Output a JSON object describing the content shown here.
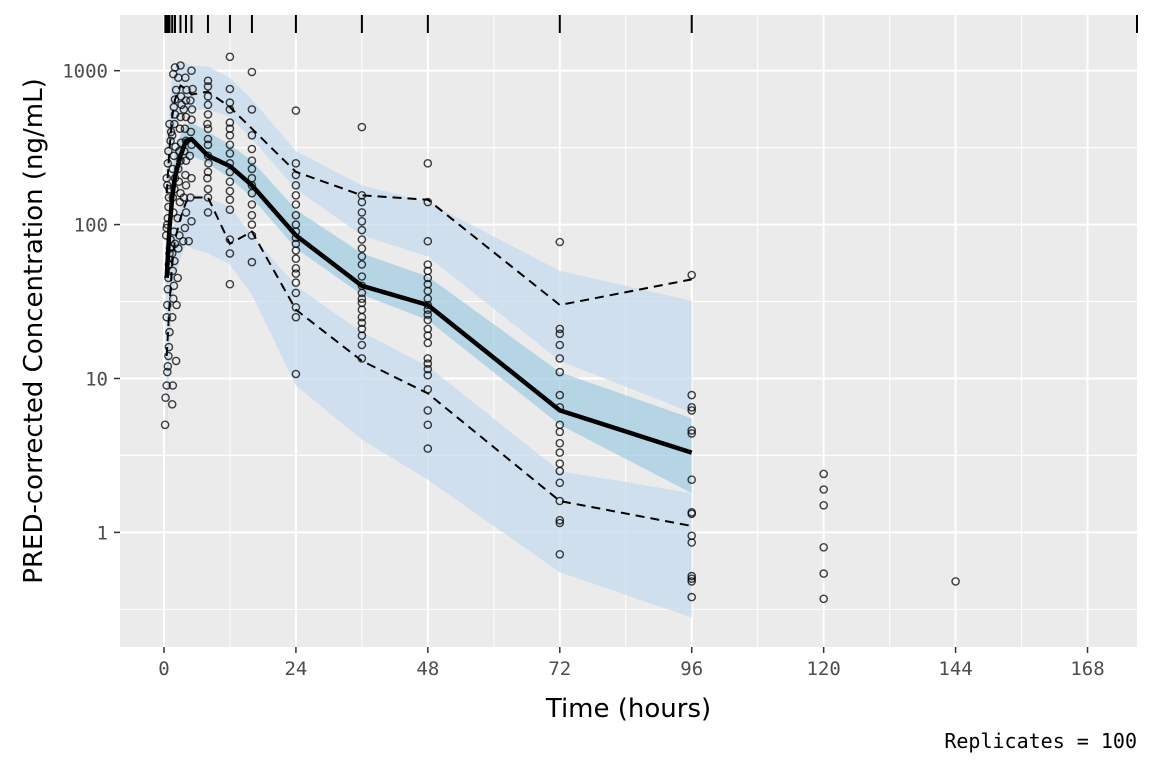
{
  "chart_data": {
    "type": "scatter",
    "xlabel": "Time (hours)",
    "ylabel": "PRED-corrected Concentration (ng/mL)",
    "caption": "Replicates = 100",
    "x_scale": "linear",
    "y_scale": "log10",
    "xlim": [
      -8,
      177
    ],
    "ylim": [
      0.18,
      2300
    ],
    "x_ticks": [
      0,
      24,
      48,
      72,
      96,
      120,
      144,
      168
    ],
    "x_tick_labels": [
      "0",
      "24",
      "48",
      "72",
      "96",
      "120",
      "144",
      "168"
    ],
    "y_ticks": [
      1,
      10,
      100,
      1000
    ],
    "y_tick_labels": [
      "1",
      "10",
      "100",
      "1000"
    ],
    "grid": true,
    "colors": {
      "panel_background": "#ebebeb",
      "grid_line": "#ffffff",
      "outer_band": "#c6dbef",
      "median_band": "#9ecae1",
      "median_line": "#000000",
      "percentile_lines": "#000000",
      "points": "#000000"
    },
    "bin_rug_x": [
      0.25,
      0.5,
      0.75,
      1,
      1.5,
      2,
      3,
      4,
      5,
      8,
      12,
      16,
      24,
      36,
      48,
      72,
      96,
      177
    ],
    "series": [
      {
        "role": "observed_median",
        "x": [
          0.5,
          1,
          1.5,
          2,
          3,
          4,
          5,
          8,
          12,
          16,
          24,
          36,
          48,
          72,
          96
        ],
        "y": [
          45,
          95,
          150,
          205,
          280,
          350,
          360,
          280,
          240,
          180,
          85,
          40,
          30,
          6.2,
          3.3
        ]
      },
      {
        "role": "observed_p95",
        "x": [
          0.5,
          1,
          1.5,
          2,
          3,
          4,
          5,
          8,
          12,
          16,
          24,
          36,
          48,
          72,
          96
        ],
        "y": [
          160,
          310,
          500,
          650,
          800,
          760,
          700,
          730,
          580,
          420,
          220,
          155,
          145,
          30,
          44
        ]
      },
      {
        "role": "observed_p05",
        "x": [
          0.5,
          1,
          1.5,
          2,
          3,
          4,
          5,
          8,
          12,
          16,
          24,
          36,
          48,
          72,
          96
        ],
        "y": [
          14,
          30,
          55,
          80,
          110,
          140,
          150,
          150,
          75,
          90,
          28,
          13,
          8,
          1.6,
          1.1
        ]
      },
      {
        "role": "pi_p95_band",
        "x": [
          0.5,
          1,
          1.5,
          2,
          3,
          4,
          5,
          8,
          12,
          16,
          24,
          36,
          48,
          72,
          96
        ],
        "lower": [
          100,
          210,
          320,
          420,
          520,
          560,
          560,
          560,
          500,
          360,
          170,
          85,
          62,
          13,
          6
        ],
        "upper": [
          320,
          620,
          900,
          1060,
          1160,
          1120,
          1080,
          1060,
          900,
          650,
          300,
          180,
          140,
          50,
          32
        ]
      },
      {
        "role": "pi_median_band",
        "x": [
          0.5,
          1,
          1.5,
          2,
          3,
          4,
          5,
          8,
          12,
          16,
          24,
          36,
          48,
          72,
          96
        ],
        "lower": [
          30,
          75,
          120,
          165,
          230,
          270,
          280,
          250,
          200,
          150,
          70,
          35,
          24,
          5,
          1.8
        ],
        "upper": [
          75,
          140,
          220,
          300,
          380,
          440,
          460,
          400,
          330,
          260,
          125,
          65,
          46,
          11,
          5.5
        ]
      },
      {
        "role": "pi_p05_band",
        "x": [
          0.5,
          1,
          1.5,
          2,
          3,
          4,
          5,
          8,
          12,
          16,
          24,
          36,
          48,
          72,
          96
        ],
        "lower": [
          3,
          15,
          28,
          45,
          60,
          75,
          70,
          65,
          55,
          35,
          9,
          4,
          2.2,
          0.55,
          0.28
        ],
        "upper": [
          30,
          60,
          85,
          110,
          130,
          150,
          160,
          150,
          130,
          85,
          40,
          20,
          12,
          2.5,
          1.8
        ]
      },
      {
        "role": "observed_points",
        "points": [
          [
            0.2,
            5
          ],
          [
            0.3,
            7.5
          ],
          [
            0.5,
            9
          ],
          [
            0.6,
            11
          ],
          [
            0.7,
            12
          ],
          [
            0.8,
            14
          ],
          [
            0.9,
            16
          ],
          [
            1,
            20
          ],
          [
            0.5,
            25
          ],
          [
            0.6,
            30
          ],
          [
            0.7,
            38
          ],
          [
            0.8,
            45
          ],
          [
            0.9,
            55
          ],
          [
            1,
            65
          ],
          [
            1.1,
            70
          ],
          [
            1.2,
            80
          ],
          [
            0.4,
            85
          ],
          [
            0.5,
            95
          ],
          [
            0.6,
            100
          ],
          [
            0.7,
            110
          ],
          [
            0.8,
            130
          ],
          [
            0.9,
            150
          ],
          [
            1,
            170
          ],
          [
            0.6,
            180
          ],
          [
            0.5,
            200
          ],
          [
            0.7,
            250
          ],
          [
            0.8,
            300
          ],
          [
            1.2,
            350
          ],
          [
            1.3,
            400
          ],
          [
            1,
            450
          ],
          [
            1.5,
            6.8
          ],
          [
            1.6,
            9
          ],
          [
            1.5,
            25
          ],
          [
            1.7,
            33
          ],
          [
            1.8,
            40
          ],
          [
            1.6,
            50
          ],
          [
            1.9,
            58
          ],
          [
            1.5,
            65
          ],
          [
            2,
            75
          ],
          [
            1.8,
            90
          ],
          [
            1.7,
            120
          ],
          [
            1.6,
            150
          ],
          [
            1.9,
            170
          ],
          [
            2,
            200
          ],
          [
            1.6,
            230
          ],
          [
            1.8,
            280
          ],
          [
            2.1,
            320
          ],
          [
            1.5,
            380
          ],
          [
            1.9,
            450
          ],
          [
            2,
            520
          ],
          [
            1.8,
            580
          ],
          [
            2,
            650
          ],
          [
            2.2,
            750
          ],
          [
            1.7,
            950
          ],
          [
            2,
            1050
          ],
          [
            2.2,
            13
          ],
          [
            2.3,
            30
          ],
          [
            2.5,
            45
          ],
          [
            2.6,
            70
          ],
          [
            2.8,
            85
          ],
          [
            2.5,
            110
          ],
          [
            2.9,
            140
          ],
          [
            3,
            160
          ],
          [
            2.7,
            190
          ],
          [
            2.6,
            230
          ],
          [
            3,
            260
          ],
          [
            2.8,
            300
          ],
          [
            3.1,
            340
          ],
          [
            2.9,
            420
          ],
          [
            3,
            500
          ],
          [
            3.2,
            600
          ],
          [
            3.1,
            680
          ],
          [
            2.6,
            900
          ],
          [
            3,
            1080
          ],
          [
            3.5,
            78
          ],
          [
            3.8,
            95
          ],
          [
            4,
            120
          ],
          [
            3.6,
            150
          ],
          [
            4,
            180
          ],
          [
            3.9,
            210
          ],
          [
            4,
            260
          ],
          [
            3.7,
            300
          ],
          [
            4,
            350
          ],
          [
            3.8,
            420
          ],
          [
            4,
            500
          ],
          [
            3.6,
            560
          ],
          [
            4,
            640
          ],
          [
            4.1,
            750
          ],
          [
            3.9,
            900
          ],
          [
            4.5,
            78
          ],
          [
            4.8,
            150
          ],
          [
            5,
            200
          ],
          [
            4.7,
            280
          ],
          [
            5,
            330
          ],
          [
            4.9,
            400
          ],
          [
            5,
            480
          ],
          [
            5.1,
            560
          ],
          [
            4.8,
            640
          ],
          [
            5.2,
            760
          ],
          [
            5,
            1000
          ],
          [
            5,
            105
          ],
          [
            8,
            120
          ],
          [
            8,
            150
          ],
          [
            8,
            170
          ],
          [
            7.9,
            200
          ],
          [
            8,
            220
          ],
          [
            8.1,
            250
          ],
          [
            8,
            280
          ],
          [
            8,
            330
          ],
          [
            8,
            360
          ],
          [
            8,
            420
          ],
          [
            7.9,
            450
          ],
          [
            8,
            520
          ],
          [
            8,
            600
          ],
          [
            8,
            680
          ],
          [
            8,
            790
          ],
          [
            8,
            860
          ],
          [
            12,
            41
          ],
          [
            12,
            65
          ],
          [
            12,
            80
          ],
          [
            12,
            125
          ],
          [
            12,
            145
          ],
          [
            12,
            165
          ],
          [
            12,
            190
          ],
          [
            12,
            220
          ],
          [
            12,
            250
          ],
          [
            12,
            290
          ],
          [
            12,
            330
          ],
          [
            12,
            380
          ],
          [
            12,
            420
          ],
          [
            12,
            460
          ],
          [
            12,
            560
          ],
          [
            12,
            620
          ],
          [
            12,
            760
          ],
          [
            12,
            1230
          ],
          [
            16,
            57
          ],
          [
            16,
            85
          ],
          [
            16,
            100
          ],
          [
            16,
            115
          ],
          [
            16,
            135
          ],
          [
            16,
            160
          ],
          [
            16,
            180
          ],
          [
            16,
            200
          ],
          [
            16,
            230
          ],
          [
            16,
            260
          ],
          [
            16,
            310
          ],
          [
            16,
            380
          ],
          [
            16,
            560
          ],
          [
            16,
            980
          ],
          [
            24,
            10.7
          ],
          [
            24,
            25
          ],
          [
            24,
            29
          ],
          [
            24,
            36
          ],
          [
            24,
            42
          ],
          [
            24,
            48
          ],
          [
            24,
            52
          ],
          [
            24,
            60
          ],
          [
            24,
            68
          ],
          [
            24,
            75
          ],
          [
            24,
            82
          ],
          [
            24,
            90
          ],
          [
            24,
            100
          ],
          [
            24,
            115
          ],
          [
            24,
            135
          ],
          [
            24,
            155
          ],
          [
            24,
            180
          ],
          [
            24,
            210
          ],
          [
            24,
            250
          ],
          [
            24,
            550
          ],
          [
            36,
            13.5
          ],
          [
            36,
            16.5
          ],
          [
            36,
            19
          ],
          [
            36,
            21
          ],
          [
            36,
            23
          ],
          [
            36,
            25
          ],
          [
            36,
            28
          ],
          [
            36,
            31
          ],
          [
            36,
            33
          ],
          [
            36,
            36
          ],
          [
            36,
            40
          ],
          [
            36,
            46
          ],
          [
            36,
            55
          ],
          [
            36,
            62
          ],
          [
            36,
            70
          ],
          [
            36,
            80
          ],
          [
            36,
            92
          ],
          [
            36,
            105
          ],
          [
            36,
            120
          ],
          [
            36,
            140
          ],
          [
            36,
            155
          ],
          [
            36,
            430
          ],
          [
            48,
            3.5
          ],
          [
            48,
            5
          ],
          [
            48,
            6.2
          ],
          [
            48,
            8.5
          ],
          [
            48,
            10.5
          ],
          [
            48,
            11.5
          ],
          [
            48,
            12.5
          ],
          [
            48,
            13.5
          ],
          [
            48,
            17
          ],
          [
            48,
            19
          ],
          [
            48,
            21
          ],
          [
            48,
            24
          ],
          [
            48,
            26
          ],
          [
            48,
            28
          ],
          [
            48,
            30
          ],
          [
            48,
            33
          ],
          [
            48,
            37
          ],
          [
            48,
            41
          ],
          [
            48,
            45
          ],
          [
            48,
            50
          ],
          [
            48,
            55
          ],
          [
            48,
            78
          ],
          [
            48,
            140
          ],
          [
            48,
            250
          ],
          [
            72,
            0.72
          ],
          [
            72,
            1.15
          ],
          [
            72,
            1.2
          ],
          [
            72,
            1.6
          ],
          [
            72,
            2.1
          ],
          [
            72,
            2.5
          ],
          [
            72,
            2.8
          ],
          [
            72,
            3.3
          ],
          [
            72,
            3.8
          ],
          [
            72,
            4.5
          ],
          [
            72,
            5
          ],
          [
            72,
            6.5
          ],
          [
            72,
            7.8
          ],
          [
            72,
            11
          ],
          [
            72,
            13.5
          ],
          [
            72,
            16.5
          ],
          [
            72,
            19.5
          ],
          [
            72,
            21
          ],
          [
            72,
            77
          ],
          [
            96,
            0.38
          ],
          [
            96,
            0.48
          ],
          [
            96,
            0.5
          ],
          [
            96,
            0.52
          ],
          [
            96,
            0.86
          ],
          [
            96,
            0.95
          ],
          [
            96,
            1.32
          ],
          [
            96,
            1.35
          ],
          [
            96,
            2.2
          ],
          [
            96,
            4.4
          ],
          [
            96,
            4.6
          ],
          [
            96,
            6.2
          ],
          [
            96,
            6.5
          ],
          [
            96,
            7.8
          ],
          [
            96,
            47
          ],
          [
            120,
            0.37
          ],
          [
            120,
            0.54
          ],
          [
            120,
            0.8
          ],
          [
            120,
            1.5
          ],
          [
            120,
            1.9
          ],
          [
            120,
            2.4
          ],
          [
            144,
            0.48
          ]
        ]
      }
    ]
  }
}
